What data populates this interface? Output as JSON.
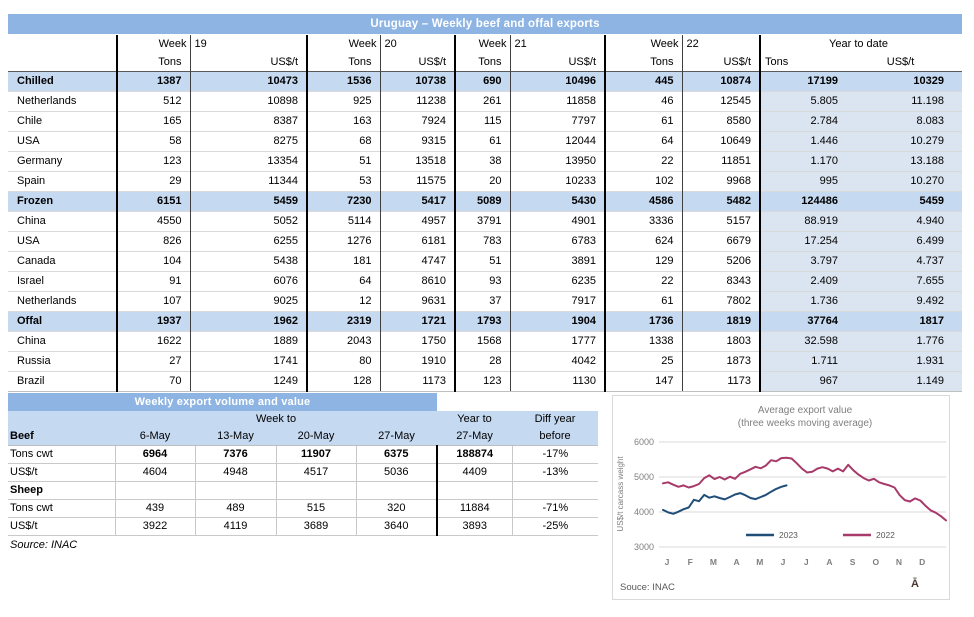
{
  "colors": {
    "title_bar": "#8db4e2",
    "section_row": "#c5d9f1",
    "ytd_column": "#dbe5f1",
    "series_2023": "#1f4e79",
    "series_2022": "#a73a6b"
  },
  "table1": {
    "title": "Uruguay – Weekly beef and offal exports",
    "groups": [
      {
        "week_label": "Week",
        "week_num": "19"
      },
      {
        "week_label": "Week",
        "week_num": "20"
      },
      {
        "week_label": "Week",
        "week_num": "21"
      },
      {
        "week_label": "Week",
        "week_num": "22"
      }
    ],
    "ytd_header": "Year to date",
    "tons_label": "Tons",
    "usdt_label": "US$/t",
    "rows": [
      {
        "label": "Chilled",
        "section": true,
        "values": [
          "1387",
          "10473",
          "1536",
          "10738",
          "690",
          "10496",
          "445",
          "10874",
          "17199",
          "10329"
        ]
      },
      {
        "label": "Netherlands",
        "values": [
          "512",
          "10898",
          "925",
          "11238",
          "261",
          "11858",
          "46",
          "12545",
          "5.805",
          "11.198"
        ]
      },
      {
        "label": "Chile",
        "values": [
          "165",
          "8387",
          "163",
          "7924",
          "115",
          "7797",
          "61",
          "8580",
          "2.784",
          "8.083"
        ]
      },
      {
        "label": "USA",
        "values": [
          "58",
          "8275",
          "68",
          "9315",
          "61",
          "12044",
          "64",
          "10649",
          "1.446",
          "10.279"
        ]
      },
      {
        "label": "Germany",
        "values": [
          "123",
          "13354",
          "51",
          "13518",
          "38",
          "13950",
          "22",
          "11851",
          "1.170",
          "13.188"
        ]
      },
      {
        "label": "Spain",
        "values": [
          "29",
          "11344",
          "53",
          "11575",
          "20",
          "10233",
          "102",
          "9968",
          "995",
          "10.270"
        ]
      },
      {
        "label": "Frozen",
        "section": true,
        "values": [
          "6151",
          "5459",
          "7230",
          "5417",
          "5089",
          "5430",
          "4586",
          "5482",
          "124486",
          "5459"
        ]
      },
      {
        "label": "China",
        "values": [
          "4550",
          "5052",
          "5114",
          "4957",
          "3791",
          "4901",
          "3336",
          "5157",
          "88.919",
          "4.940"
        ]
      },
      {
        "label": "USA",
        "values": [
          "826",
          "6255",
          "1276",
          "6181",
          "783",
          "6783",
          "624",
          "6679",
          "17.254",
          "6.499"
        ]
      },
      {
        "label": "Canada",
        "values": [
          "104",
          "5438",
          "181",
          "4747",
          "51",
          "3891",
          "129",
          "5206",
          "3.797",
          "4.737"
        ]
      },
      {
        "label": "Israel",
        "values": [
          "91",
          "6076",
          "64",
          "8610",
          "93",
          "6235",
          "22",
          "8343",
          "2.409",
          "7.655"
        ]
      },
      {
        "label": "Netherlands",
        "values": [
          "107",
          "9025",
          "12",
          "9631",
          "37",
          "7917",
          "61",
          "7802",
          "1.736",
          "9.492"
        ]
      },
      {
        "label": "Offal",
        "section": true,
        "values": [
          "1937",
          "1962",
          "2319",
          "1721",
          "1793",
          "1904",
          "1736",
          "1819",
          "37764",
          "1817"
        ]
      },
      {
        "label": "China",
        "values": [
          "1622",
          "1889",
          "2043",
          "1750",
          "1568",
          "1777",
          "1338",
          "1803",
          "32.598",
          "1.776"
        ]
      },
      {
        "label": "Russia",
        "values": [
          "27",
          "1741",
          "80",
          "1910",
          "28",
          "4042",
          "25",
          "1873",
          "1.711",
          "1.931"
        ]
      },
      {
        "label": "Brazil",
        "values": [
          "70",
          "1249",
          "128",
          "1173",
          "123",
          "1130",
          "147",
          "1173",
          "967",
          "1.149"
        ]
      }
    ]
  },
  "table2": {
    "title": "Weekly export volume and value",
    "week_to": "Week to",
    "year_to": "Year to",
    "diff_line1": "Diff year",
    "diff_line2": "before",
    "beef_label": "Beef",
    "dates": [
      "6-May",
      "13-May",
      "20-May",
      "27-May"
    ],
    "ytd_date": "27-May",
    "rows": [
      {
        "label": "Tons cwt",
        "bold_values": true,
        "values": [
          "6964",
          "7376",
          "11907",
          "6375",
          "188874",
          "-17%"
        ]
      },
      {
        "label": "US$/t",
        "values": [
          "4604",
          "4948",
          "4517",
          "5036",
          "4409",
          "-13%"
        ]
      },
      {
        "label": "Sheep",
        "section": true,
        "values": [
          "",
          "",
          "",
          "",
          "",
          ""
        ]
      },
      {
        "label": "Tons cwt",
        "values": [
          "439",
          "489",
          "515",
          "320",
          "11884",
          "-71%"
        ]
      },
      {
        "label": "US$/t",
        "values": [
          "3922",
          "4119",
          "3689",
          "3640",
          "3893",
          "-25%"
        ]
      }
    ],
    "source": "Source: INAC"
  },
  "chart": {
    "source": "Souce: INAC",
    "watermark": "Ā"
  },
  "chart_data": {
    "type": "line",
    "title": "Average export value",
    "subtitle": "(three weeks moving average)",
    "ylabel": "US$/t carcass weight",
    "x_tick_labels": [
      "J",
      "F",
      "M",
      "A",
      "M",
      "J",
      "J",
      "A",
      "S",
      "O",
      "N",
      "D"
    ],
    "ylim": [
      3000,
      6000
    ],
    "yticks": [
      6000,
      5000,
      4000,
      3000
    ],
    "grid": true,
    "legend_position": "inside-bottom",
    "n_weeks": 56,
    "series": [
      {
        "name": "2023",
        "color": "#1f4e79",
        "values": [
          4060,
          3990,
          3950,
          4010,
          4080,
          4130,
          4350,
          4310,
          4490,
          4410,
          4450,
          4400,
          4360,
          4430,
          4500,
          4540,
          4480,
          4400,
          4370,
          4430,
          4490,
          4580,
          4660,
          4720,
          4760
        ]
      },
      {
        "name": "2022",
        "color": "#a73a6b",
        "values": [
          4820,
          4850,
          4780,
          4720,
          4760,
          4700,
          4740,
          4800,
          4970,
          5050,
          4940,
          5000,
          4930,
          5010,
          4950,
          5090,
          5150,
          5220,
          5290,
          5250,
          5330,
          5480,
          5450,
          5540,
          5550,
          5530,
          5390,
          5240,
          5130,
          5150,
          5240,
          5280,
          5240,
          5160,
          5240,
          5160,
          5350,
          5190,
          5070,
          4970,
          4900,
          4950,
          4850,
          4800,
          4760,
          4700,
          4480,
          4340,
          4300,
          4390,
          4330,
          4180,
          4050,
          3980,
          3880,
          3760
        ]
      }
    ]
  }
}
